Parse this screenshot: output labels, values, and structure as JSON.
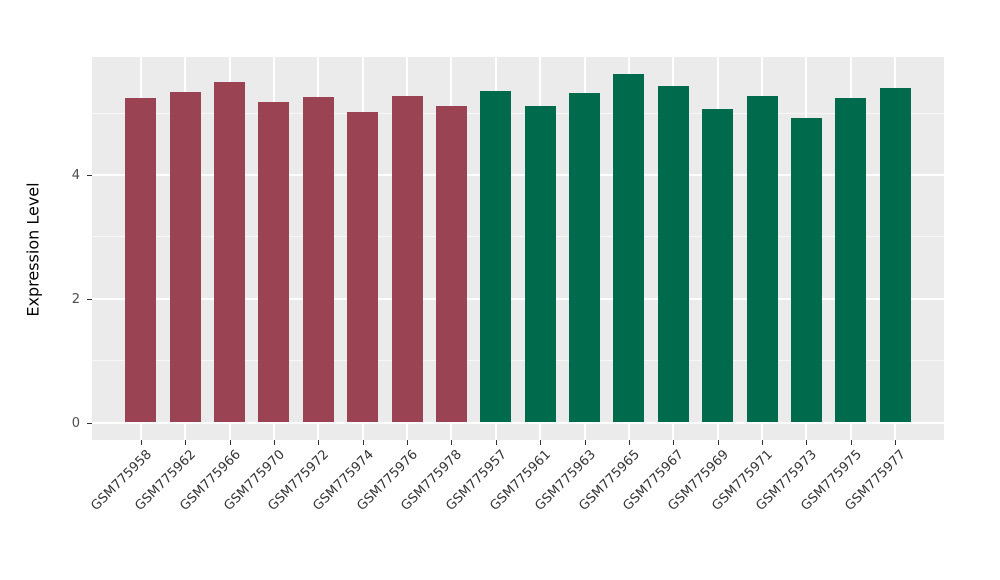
{
  "chart_data": {
    "type": "bar",
    "title": "",
    "xlabel": "",
    "ylabel": "Expression Level",
    "ylim": [
      0,
      5.9
    ],
    "yticks": [
      0,
      2,
      4
    ],
    "minor_yticks": [
      1,
      3,
      5
    ],
    "grid": "on",
    "legend": "none",
    "categories": [
      "GSM775958",
      "GSM775962",
      "GSM775966",
      "GSM775970",
      "GSM775972",
      "GSM775974",
      "GSM775976",
      "GSM775978",
      "GSM775957",
      "GSM775961",
      "GSM775963",
      "GSM775965",
      "GSM775967",
      "GSM775969",
      "GSM775971",
      "GSM775973",
      "GSM775975",
      "GSM775977"
    ],
    "values": [
      5.24,
      5.34,
      5.5,
      5.18,
      5.26,
      5.01,
      5.27,
      5.11,
      5.36,
      5.12,
      5.33,
      5.63,
      5.44,
      5.06,
      5.28,
      4.92,
      5.24,
      5.41
    ],
    "groups": [
      "maroon",
      "maroon",
      "maroon",
      "maroon",
      "maroon",
      "maroon",
      "maroon",
      "maroon",
      "green",
      "green",
      "green",
      "green",
      "green",
      "green",
      "green",
      "green",
      "green",
      "green"
    ],
    "colors": {
      "maroon": "#9A4453",
      "green": "#006B4C",
      "panel_background": "#EBEBEB",
      "major_gridline": "#FFFFFF",
      "minor_gridline": "#F7F7F7",
      "tick_mark": "#333333",
      "axis_text": "#4D4D4D",
      "axis_title": "#000000"
    }
  }
}
